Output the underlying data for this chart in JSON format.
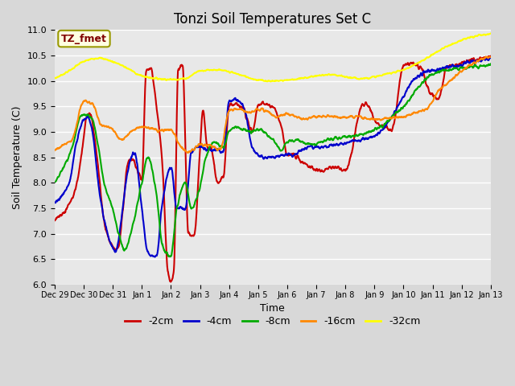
{
  "title": "Tonzi Soil Temperatures Set C",
  "xlabel": "Time",
  "ylabel": "Soil Temperature (C)",
  "ylim": [
    6.0,
    11.0
  ],
  "yticks": [
    6.0,
    6.5,
    7.0,
    7.5,
    8.0,
    8.5,
    9.0,
    9.5,
    10.0,
    10.5,
    11.0
  ],
  "line_colors": {
    "-2cm": "#cc0000",
    "-4cm": "#0000cc",
    "-8cm": "#00aa00",
    "-16cm": "#ff8800",
    "-32cm": "#ffff00"
  },
  "legend_labels": [
    "-2cm",
    "-4cm",
    "-8cm",
    "-16cm",
    "-32cm"
  ],
  "xtick_labels": [
    "Dec 29",
    "Dec 30",
    "Dec 31",
    "Jan 1",
    "Jan 2",
    "Jan 3",
    "Jan 4",
    "Jan 5",
    "Jan 6",
    "Jan 7",
    "Jan 8",
    "Jan 9",
    "Jan 10",
    "Jan 11",
    "Jan 12",
    "Jan 13"
  ],
  "annotation_text": "TZ_fmet",
  "annotation_color": "#800000",
  "annotation_bg": "#ffffe0",
  "bg_color": "#e8e8e8",
  "grid_color": "#ffffff",
  "title_fontsize": 12,
  "figsize": [
    6.4,
    4.8
  ],
  "dpi": 100
}
